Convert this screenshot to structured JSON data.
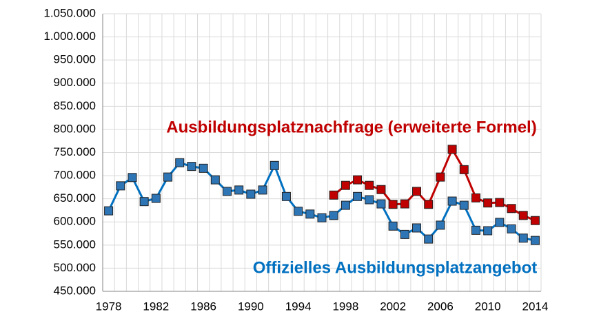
{
  "chart_data": {
    "type": "line",
    "x": [
      1978,
      1979,
      1980,
      1981,
      1982,
      1983,
      1984,
      1985,
      1986,
      1987,
      1988,
      1989,
      1990,
      1991,
      1992,
      1993,
      1994,
      1995,
      1996,
      1997,
      1998,
      1999,
      2000,
      2001,
      2002,
      2003,
      2004,
      2005,
      2006,
      2007,
      2008,
      2009,
      2010,
      2011,
      2012,
      2013,
      2014
    ],
    "series": [
      {
        "name": "Offizielles Ausbildungsplatzangebot",
        "color": "#0070c0",
        "marker_color": "#2e75b6",
        "values": [
          624000,
          678000,
          696000,
          644000,
          651000,
          697000,
          728000,
          720000,
          716000,
          691000,
          666000,
          669000,
          660000,
          669000,
          722000,
          655000,
          623000,
          617000,
          609000,
          614000,
          636000,
          655000,
          648000,
          639000,
          591000,
          573000,
          587000,
          563000,
          593000,
          645000,
          636000,
          582000,
          581000,
          599000,
          585000,
          565000,
          560000
        ]
      },
      {
        "name": "Ausbildungsplatznachfrage (erweiterte Formel)",
        "color": "#c00000",
        "marker_color": "#c00000",
        "values": [
          null,
          null,
          null,
          null,
          null,
          null,
          null,
          null,
          null,
          null,
          null,
          null,
          null,
          null,
          null,
          null,
          null,
          null,
          null,
          658000,
          679000,
          691000,
          679000,
          670000,
          638000,
          639000,
          666000,
          638000,
          697000,
          757000,
          713000,
          652000,
          641000,
          642000,
          629000,
          614000,
          603000
        ]
      }
    ],
    "xlim": [
      1977.5,
      2014.5
    ],
    "xticks": [
      1978,
      1982,
      1986,
      1990,
      1994,
      1998,
      2002,
      2006,
      2010,
      2014
    ],
    "ylim": [
      450000,
      1050000
    ],
    "yticks": [
      {
        "value": 450000,
        "label": "450.000"
      },
      {
        "value": 500000,
        "label": "500.000"
      },
      {
        "value": 550000,
        "label": "550.000"
      },
      {
        "value": 600000,
        "label": "600.000"
      },
      {
        "value": 650000,
        "label": "650.000"
      },
      {
        "value": 700000,
        "label": "700.000"
      },
      {
        "value": 750000,
        "label": "750.000"
      },
      {
        "value": 800000,
        "label": "800.000"
      },
      {
        "value": 850000,
        "label": "850.000"
      },
      {
        "value": 900000,
        "label": "900.000"
      },
      {
        "value": 950000,
        "label": "950.000"
      },
      {
        "value": 1000000,
        "label": "1.000.000"
      },
      {
        "value": 1050000,
        "label": "1.050.000"
      }
    ],
    "grid": true
  }
}
